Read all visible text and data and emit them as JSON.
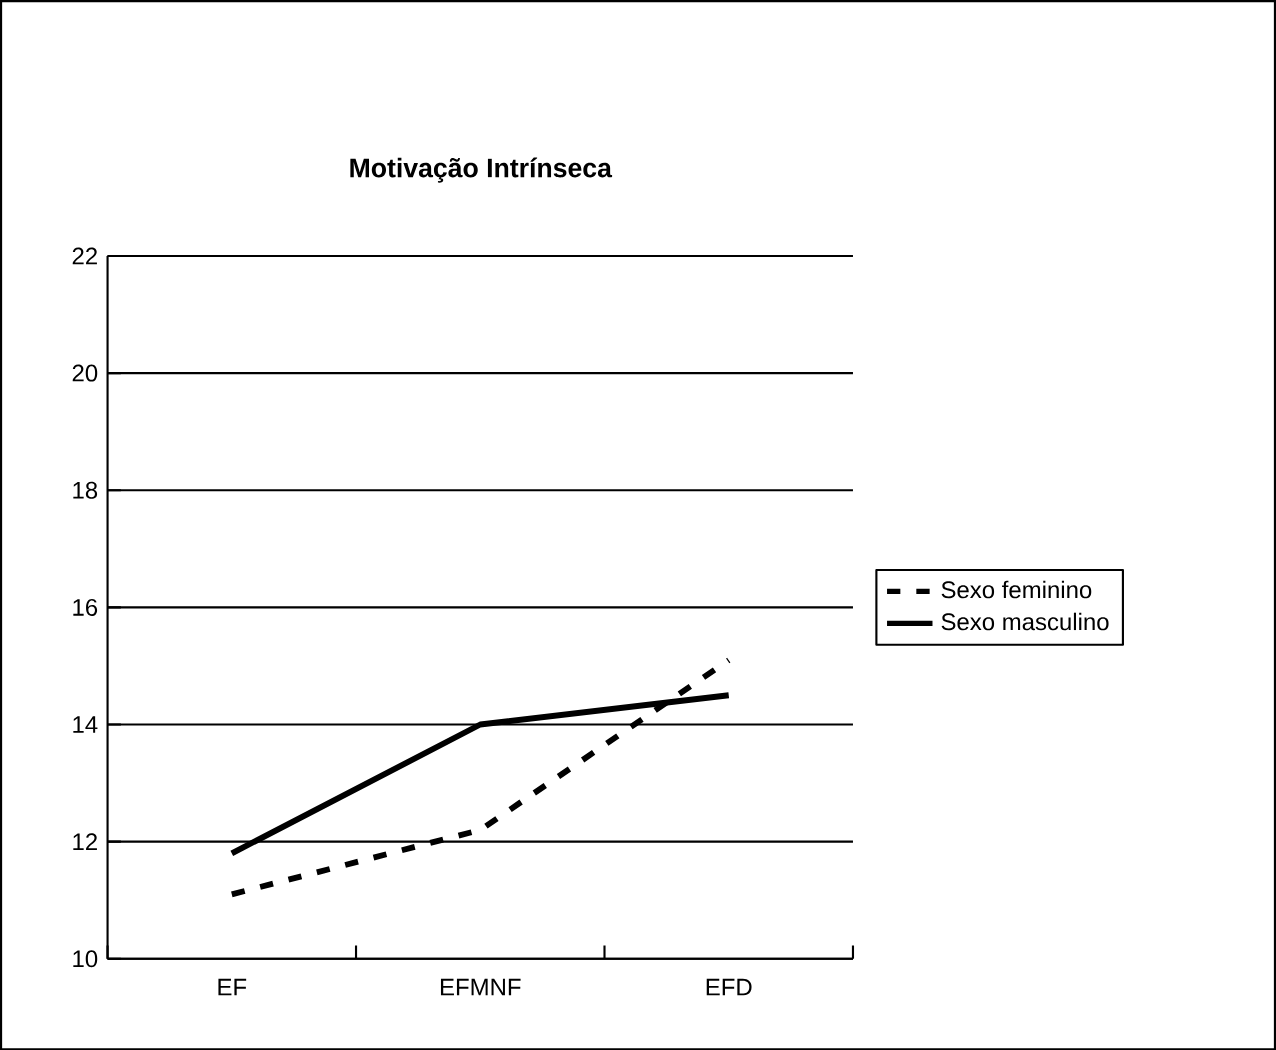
{
  "chart_data": {
    "type": "line",
    "title": "Motivação Intrínseca",
    "categories": [
      "EF",
      "EFMNF",
      "EFD"
    ],
    "series": [
      {
        "name": "Sexo feminino",
        "color": "#000000",
        "values": [
          11.1,
          12.2,
          15.1
        ],
        "line_style": "dashed"
      },
      {
        "name": "Sexo masculino",
        "color": "#000000",
        "values": [
          11.8,
          14.0,
          14.5
        ],
        "line_style": "solid"
      }
    ],
    "ylim": [
      10,
      22
    ],
    "yticks": [
      10,
      12,
      14,
      16,
      18,
      20,
      22
    ],
    "grid": "y",
    "legend": "right",
    "marker": "none"
  }
}
